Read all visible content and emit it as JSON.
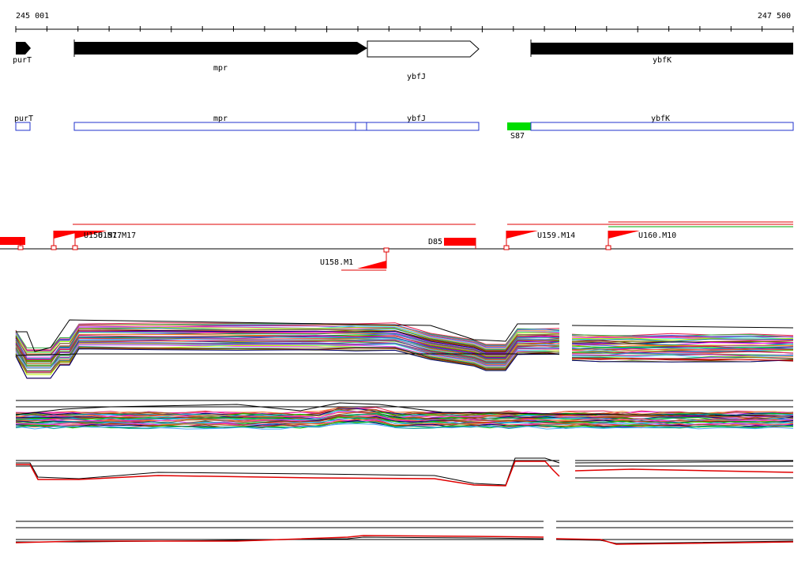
{
  "ruler": {
    "start_label": "245 001",
    "end_label": "247 500"
  },
  "genes": [
    {
      "name": "purT",
      "strand": "+",
      "style": "filled"
    },
    {
      "name": "mpr",
      "strand": "+",
      "style": "filled"
    },
    {
      "name": "ybfJ",
      "strand": "+",
      "style": "outline"
    },
    {
      "name": "ybfK",
      "strand": "+",
      "style": "filled"
    }
  ],
  "transcripts": [
    {
      "name": "purT"
    },
    {
      "name": "mpr"
    },
    {
      "name": "ybfJ"
    },
    {
      "name": "ybfK"
    }
  ],
  "highlight_feature": {
    "name": "S87",
    "color": "#00dd00"
  },
  "promoters": [
    {
      "label": "U156.M17"
    },
    {
      "label": "U157.M17"
    },
    {
      "label": "U158.M1"
    },
    {
      "label": "U159.M14"
    },
    {
      "label": "U160.M10"
    },
    {
      "label": "D85"
    }
  ],
  "colors": {
    "gene_fill": "#000000",
    "transcript_outline": "#2233cc",
    "promoter": "#ff0000",
    "signal_primary": "#000000",
    "signal_secondary": "#e00000"
  },
  "expression_panels": [
    {
      "id": "panel-1",
      "type": "multi-track",
      "gap": true
    },
    {
      "id": "panel-2",
      "type": "multi-track",
      "gap": false
    },
    {
      "id": "panel-3",
      "type": "two-track",
      "gap": true
    },
    {
      "id": "panel-4",
      "type": "two-track",
      "gap": true
    }
  ]
}
